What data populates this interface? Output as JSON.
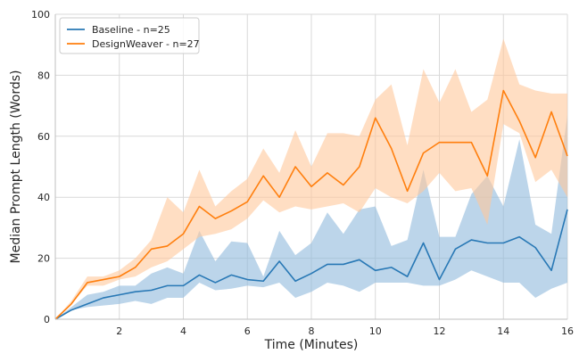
{
  "chart_data": {
    "type": "line",
    "title": "",
    "xlabel": "Time (Minutes)",
    "ylabel": "Median Prompt Length (Words)",
    "xlim": [
      0,
      16
    ],
    "ylim": [
      0,
      100
    ],
    "xticks": [
      2,
      4,
      6,
      8,
      10,
      12,
      14,
      16
    ],
    "yticks": [
      0,
      20,
      40,
      60,
      80,
      100
    ],
    "grid": true,
    "legend_position": "top-left",
    "x": [
      0,
      0.5,
      1,
      1.5,
      2,
      2.5,
      3,
      3.5,
      4,
      4.5,
      5,
      5.5,
      6,
      6.5,
      7,
      7.5,
      8,
      8.5,
      9,
      9.5,
      10,
      10.5,
      11,
      11.5,
      12,
      12.5,
      13,
      13.5,
      14,
      14.5,
      15,
      15.5,
      16
    ],
    "series": [
      {
        "name": "Baseline - n=25",
        "color": "#2878b5",
        "band_color": "#8fb9dc",
        "values": [
          0,
          3,
          5,
          7,
          8,
          9,
          9.5,
          11,
          11,
          14.5,
          12,
          14.5,
          13,
          12.5,
          19,
          12.5,
          15,
          18,
          18,
          19.5,
          16,
          17,
          14,
          25,
          13,
          23,
          26,
          25,
          25,
          27,
          23.5,
          16,
          36
        ],
        "lower": [
          0,
          3,
          4,
          4.5,
          5,
          6,
          5,
          7,
          7,
          12,
          9.5,
          10,
          11,
          10.5,
          12,
          7,
          9,
          12,
          11,
          9,
          12,
          12,
          12,
          11,
          11,
          13,
          16,
          14,
          12,
          12,
          7,
          10,
          12
        ],
        "upper": [
          0,
          4,
          8,
          9,
          11,
          11,
          15,
          17,
          15,
          29,
          19,
          25.5,
          25,
          14,
          29,
          21,
          25,
          35,
          28,
          36,
          37,
          24,
          26,
          49,
          27,
          27,
          41,
          47,
          37,
          59,
          31,
          28,
          67
        ]
      },
      {
        "name": "DesignWeaver - n=27",
        "color": "#ff7f0e",
        "band_color": "#ffc89b",
        "values": [
          0,
          5,
          12,
          13,
          14,
          17,
          23,
          24,
          28,
          37,
          33,
          35.5,
          38.5,
          47,
          40,
          50,
          43.5,
          48,
          44,
          50,
          66,
          56,
          42,
          54.5,
          58,
          58,
          58,
          47,
          75,
          65,
          53,
          68,
          53.5
        ],
        "lower": [
          0,
          5,
          11,
          11,
          13,
          14,
          17,
          19,
          23,
          27,
          28,
          29.5,
          33,
          39,
          35,
          37,
          36,
          37,
          38,
          35,
          43,
          40,
          38,
          42,
          48,
          42,
          43,
          31,
          64,
          61,
          45,
          49,
          40
        ],
        "upper": [
          0,
          6,
          14,
          14,
          16,
          20,
          26,
          40,
          35,
          49,
          37,
          42,
          46,
          56,
          48,
          62,
          50,
          61,
          61,
          60,
          72,
          77,
          57,
          82,
          71,
          82,
          68,
          72,
          92,
          77,
          75,
          74,
          74
        ]
      }
    ]
  }
}
